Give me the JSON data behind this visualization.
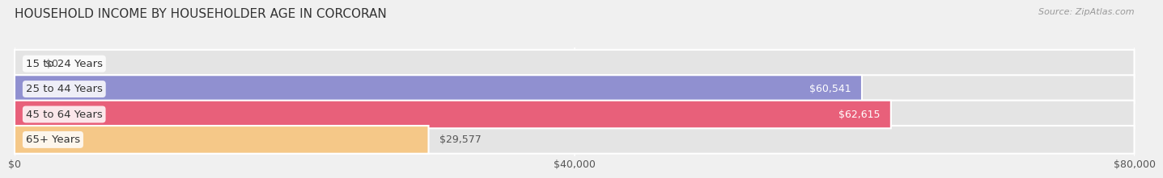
{
  "title": "HOUSEHOLD INCOME BY HOUSEHOLDER AGE IN CORCORAN",
  "source": "Source: ZipAtlas.com",
  "categories": [
    "15 to 24 Years",
    "25 to 44 Years",
    "45 to 64 Years",
    "65+ Years"
  ],
  "values": [
    0,
    60541,
    62615,
    29577
  ],
  "bar_colors": [
    "#7dd8d4",
    "#9090d0",
    "#e8607a",
    "#f5c888"
  ],
  "label_colors": [
    "#555555",
    "#ffffff",
    "#ffffff",
    "#555555"
  ],
  "bg_color": "#f0f0f0",
  "bar_bg_color": "#e4e4e4",
  "xlim": [
    0,
    80000
  ],
  "xticks": [
    0,
    40000,
    80000
  ],
  "xtick_labels": [
    "$0",
    "$40,000",
    "$80,000"
  ],
  "bar_height": 0.58,
  "title_fontsize": 11,
  "source_fontsize": 8,
  "label_fontsize": 9,
  "category_fontsize": 9.5
}
